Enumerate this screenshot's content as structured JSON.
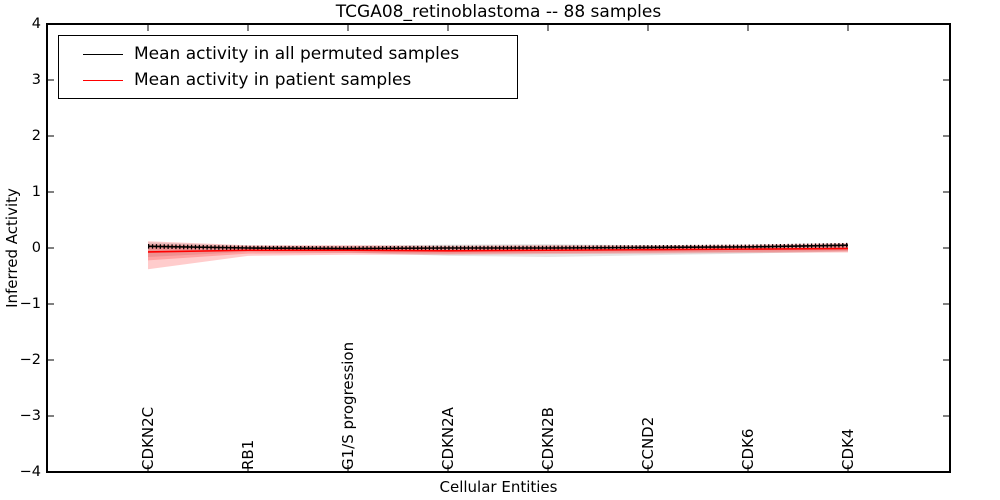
{
  "chart_data": {
    "type": "line",
    "title": "TCGA08_retinoblastoma -- 88 samples",
    "xlabel": "Cellular Entities",
    "ylabel": "Inferred Activity",
    "ylim": [
      -4,
      4
    ],
    "yticks": [
      4,
      3,
      2,
      1,
      0,
      -1,
      -2,
      -3,
      -4
    ],
    "ytick_labels": [
      "4",
      "3",
      "2",
      "1",
      "0",
      "−1",
      "−2",
      "−3",
      "−4"
    ],
    "categories": [
      "CDKN2C",
      "RB1",
      "G1/S progression",
      "CDKN2A",
      "CDKN2B",
      "CCND2",
      "CDK6",
      "CDK4"
    ],
    "grid": false,
    "legend_position": "upper left",
    "marker_note": "black mean line carries dense vertical tick markers between labeled entities",
    "series": [
      {
        "name": "Mean activity in all permuted samples",
        "color": "#000000",
        "values": [
          0.03,
          0.0,
          -0.01,
          0.0,
          0.0,
          0.01,
          0.02,
          0.05
        ],
        "band": {
          "color": "#000000",
          "opacity": 0.1,
          "upper": [
            0.1,
            0.04,
            0.04,
            0.06,
            0.07,
            0.05,
            0.04,
            0.05
          ],
          "lower": [
            -0.16,
            -0.07,
            -0.08,
            -0.14,
            -0.16,
            -0.13,
            -0.1,
            -0.06
          ]
        }
      },
      {
        "name": "Mean activity in patient samples",
        "color": "#ff0000",
        "values": [
          -0.07,
          -0.04,
          -0.04,
          -0.05,
          -0.04,
          -0.03,
          -0.02,
          -0.01
        ],
        "band": {
          "color": "#ff0000",
          "opacity": 0.2,
          "upper": [
            0.12,
            0.05,
            0.05,
            0.04,
            0.05,
            0.05,
            0.06,
            0.09
          ],
          "lower": [
            -0.38,
            -0.14,
            -0.12,
            -0.12,
            -0.11,
            -0.1,
            -0.09,
            -0.08
          ]
        },
        "band_inner": {
          "color": "#ff0000",
          "opacity": 0.2,
          "upper": [
            0.06,
            0.03,
            0.03,
            0.02,
            0.03,
            0.03,
            0.04,
            0.07
          ],
          "lower": [
            -0.22,
            -0.1,
            -0.09,
            -0.1,
            -0.09,
            -0.08,
            -0.07,
            -0.06
          ]
        }
      }
    ]
  }
}
